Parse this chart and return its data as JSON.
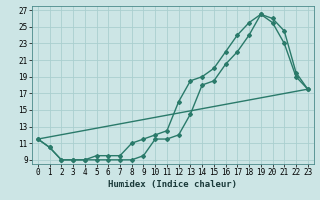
{
  "xlabel": "Humidex (Indice chaleur)",
  "bg_color": "#cce5e5",
  "grid_color": "#aacfcf",
  "line_color": "#2a7a6a",
  "xlim": [
    -0.5,
    23.5
  ],
  "ylim": [
    8.5,
    27.5
  ],
  "xticks": [
    0,
    1,
    2,
    3,
    4,
    5,
    6,
    7,
    8,
    9,
    10,
    11,
    12,
    13,
    14,
    15,
    16,
    17,
    18,
    19,
    20,
    21,
    22,
    23
  ],
  "yticks": [
    9,
    11,
    13,
    15,
    17,
    19,
    21,
    23,
    25,
    27
  ],
  "line1_x": [
    0,
    1,
    2,
    3,
    4,
    5,
    6,
    7,
    8,
    9,
    10,
    11,
    12,
    13,
    14,
    15,
    16,
    17,
    18,
    19,
    20,
    21,
    22,
    23
  ],
  "line1_y": [
    11.5,
    10.5,
    9.0,
    9.0,
    9.0,
    9.0,
    9.0,
    9.0,
    9.0,
    9.5,
    11.5,
    11.5,
    12.0,
    14.5,
    18.0,
    18.5,
    20.5,
    22.0,
    24.0,
    26.5,
    26.0,
    24.5,
    19.5,
    17.5
  ],
  "line2_x": [
    0,
    1,
    2,
    3,
    4,
    5,
    6,
    7,
    8,
    9,
    10,
    11,
    12,
    13,
    14,
    15,
    16,
    17,
    18,
    19,
    20,
    21,
    22,
    23
  ],
  "line2_y": [
    11.5,
    10.5,
    9.0,
    9.0,
    9.0,
    9.5,
    9.5,
    9.5,
    11.0,
    11.5,
    12.0,
    12.5,
    16.0,
    18.5,
    19.0,
    20.0,
    22.0,
    24.0,
    25.5,
    26.5,
    25.5,
    23.0,
    19.0,
    17.5
  ],
  "line3_x": [
    0,
    23
  ],
  "line3_y": [
    11.5,
    17.5
  ],
  "marker": "D",
  "markersize": 2.0,
  "linewidth": 1.0,
  "tick_fontsize": 5.5,
  "xlabel_fontsize": 6.5
}
